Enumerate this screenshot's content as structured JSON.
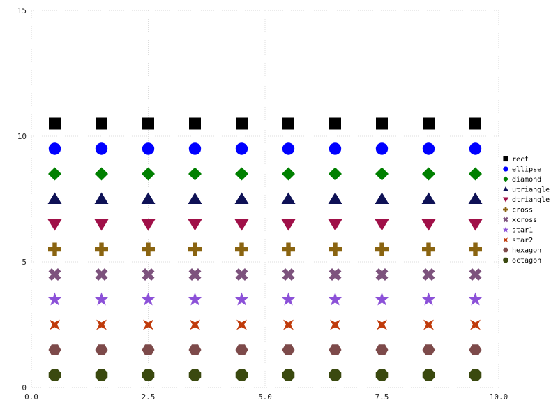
{
  "chart_data": {
    "type": "scatter",
    "title": "",
    "xlabel": "",
    "ylabel": "",
    "xlim": [
      0,
      10
    ],
    "ylim": [
      0,
      15
    ],
    "xticks": [
      "0.0",
      "2.5",
      "5.0",
      "7.5",
      "10.0"
    ],
    "xtick_values": [
      0,
      2.5,
      5,
      7.5,
      10
    ],
    "yticks": [
      "0",
      "5",
      "10",
      "15"
    ],
    "ytick_values": [
      0,
      5,
      10,
      15
    ],
    "grid": "dotted",
    "legend_position": "right",
    "x": [
      0.5,
      1.5,
      2.5,
      3.5,
      4.5,
      5.5,
      6.5,
      7.5,
      8.5,
      9.5
    ],
    "series": [
      {
        "name": "rect",
        "shape": "rect",
        "y": 10.5,
        "color": "#000000"
      },
      {
        "name": "ellipse",
        "shape": "ellipse",
        "y": 9.5,
        "color": "#0000ff"
      },
      {
        "name": "diamond",
        "shape": "diamond",
        "y": 8.5,
        "color": "#008000"
      },
      {
        "name": "utriangle",
        "shape": "utriangle",
        "y": 7.5,
        "color": "#0e1156"
      },
      {
        "name": "dtriangle",
        "shape": "dtriangle",
        "y": 6.5,
        "color": "#a01048"
      },
      {
        "name": "cross",
        "shape": "cross",
        "y": 5.5,
        "color": "#8a6411"
      },
      {
        "name": "xcross",
        "shape": "xcross",
        "y": 4.5,
        "color": "#7d527d"
      },
      {
        "name": "star1",
        "shape": "star1",
        "y": 3.5,
        "color": "#8c51d8"
      },
      {
        "name": "star2",
        "shape": "star2",
        "y": 2.5,
        "color": "#c03a0a"
      },
      {
        "name": "hexagon",
        "shape": "hexagon",
        "y": 1.5,
        "color": "#7d4a4a"
      },
      {
        "name": "octagon",
        "shape": "octagon",
        "y": 0.5,
        "color": "#3a490f"
      }
    ],
    "plot_colors": {
      "background": "#ffffff",
      "grid": "#dcdcdc",
      "border": "#d5d5d5",
      "tick_text": "#262626"
    }
  }
}
